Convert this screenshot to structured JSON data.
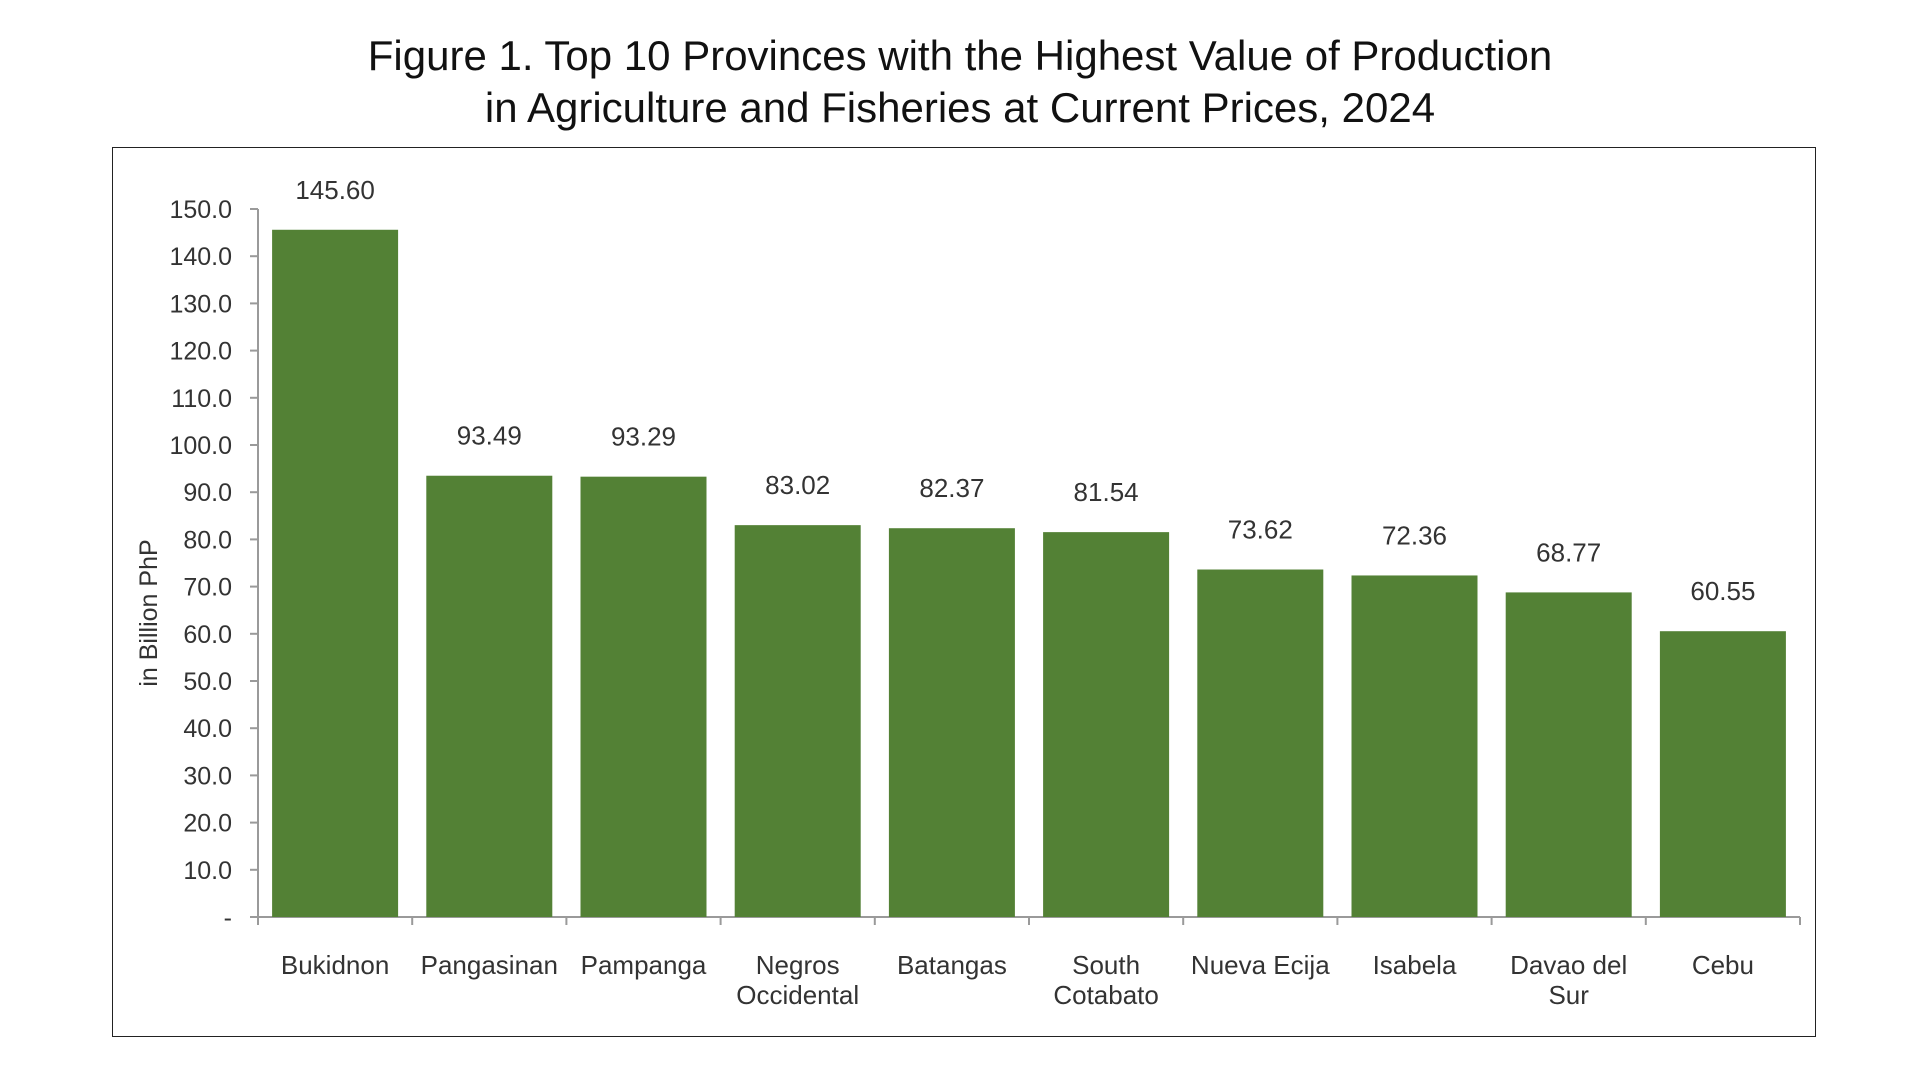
{
  "chart_data": {
    "type": "bar",
    "title_lines": [
      "Figure 1. Top 10 Provinces with the Highest Value of Production",
      "in Agriculture and Fisheries at Current Prices, 2024"
    ],
    "ylabel": "in Billion PhP",
    "ylim": [
      0,
      150
    ],
    "yticks": [
      {
        "value": 0,
        "label": "-"
      },
      {
        "value": 10,
        "label": "10.0"
      },
      {
        "value": 20,
        "label": "20.0"
      },
      {
        "value": 30,
        "label": "30.0"
      },
      {
        "value": 40,
        "label": "40.0"
      },
      {
        "value": 50,
        "label": "50.0"
      },
      {
        "value": 60,
        "label": "60.0"
      },
      {
        "value": 70,
        "label": "70.0"
      },
      {
        "value": 80,
        "label": "80.0"
      },
      {
        "value": 90,
        "label": "90.0"
      },
      {
        "value": 100,
        "label": "100.0"
      },
      {
        "value": 110,
        "label": "110.0"
      },
      {
        "value": 120,
        "label": "120.0"
      },
      {
        "value": 130,
        "label": "130.0"
      },
      {
        "value": 140,
        "label": "140.0"
      },
      {
        "value": 150,
        "label": "150.0"
      }
    ],
    "categories": [
      [
        "Bukidnon"
      ],
      [
        "Pangasinan"
      ],
      [
        "Pampanga"
      ],
      [
        "Negros",
        "Occidental"
      ],
      [
        "Batangas"
      ],
      [
        "South",
        "Cotabato"
      ],
      [
        "Nueva Ecija"
      ],
      [
        "Isabela"
      ],
      [
        "Davao del",
        "Sur"
      ],
      [
        "Cebu"
      ]
    ],
    "values": [
      145.6,
      93.49,
      93.29,
      83.02,
      82.37,
      81.54,
      73.62,
      72.36,
      68.77,
      60.55
    ],
    "data_labels": [
      "145.60",
      "93.49",
      "93.29",
      "83.02",
      "82.37",
      "81.54",
      "73.62",
      "72.36",
      "68.77",
      "60.55"
    ],
    "grid": false,
    "legend": "none",
    "bar_color": "#538135"
  }
}
